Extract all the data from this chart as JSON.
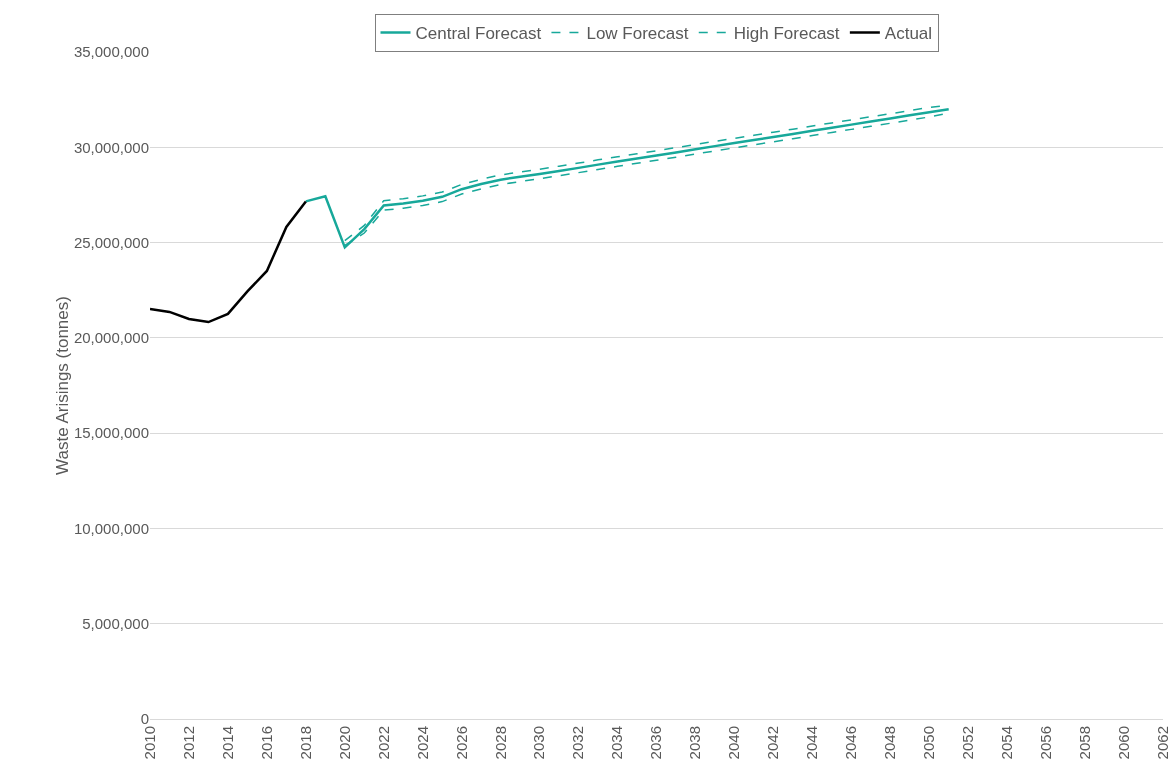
{
  "chart_data": {
    "type": "line",
    "ylabel": "Waste Arisings (tonnes)",
    "xlim": [
      2010,
      2062
    ],
    "xticks": [
      2010,
      2012,
      2014,
      2016,
      2018,
      2020,
      2022,
      2024,
      2026,
      2028,
      2030,
      2032,
      2034,
      2036,
      2038,
      2040,
      2042,
      2044,
      2046,
      2048,
      2050,
      2052,
      2054,
      2056,
      2058,
      2060,
      2062
    ],
    "ylim": [
      0,
      35000000
    ],
    "yticks": [
      {
        "value": 0,
        "label": "0"
      },
      {
        "value": 5000000,
        "label": "5,000,000"
      },
      {
        "value": 10000000,
        "label": "10,000,000"
      },
      {
        "value": 15000000,
        "label": "15,000,000"
      },
      {
        "value": 20000000,
        "label": "20,000,000"
      },
      {
        "value": 25000000,
        "label": "25,000,000"
      },
      {
        "value": 30000000,
        "label": "30,000,000"
      },
      {
        "value": 35000000,
        "label": "35,000,000"
      }
    ],
    "grid": "y",
    "legend": "top",
    "marker": "none",
    "series": [
      {
        "name": "Central Forecast",
        "color": "#17a89a",
        "line_style": "solid",
        "x": [
          2018,
          2019,
          2020,
          2021,
          2022,
          2023,
          2024,
          2025,
          2026,
          2027,
          2028,
          2029,
          2030,
          2031,
          2032,
          2033,
          2034,
          2035,
          2036,
          2037,
          2038,
          2039,
          2040,
          2041,
          2042,
          2043,
          2044,
          2045,
          2046,
          2047,
          2048,
          2049,
          2050,
          2051
        ],
        "values": [
          27160000,
          27430000,
          24750000,
          25710000,
          26950000,
          27050000,
          27200000,
          27400000,
          27800000,
          28070000,
          28300000,
          28450000,
          28600000,
          28760000,
          28920000,
          29090000,
          29250000,
          29410000,
          29570000,
          29730000,
          29900000,
          30060000,
          30220000,
          30380000,
          30540000,
          30700000,
          30870000,
          31030000,
          31190000,
          31350000,
          31510000,
          31680000,
          31840000,
          32000000
        ]
      },
      {
        "name": "Low Forecast",
        "color": "#17a89a",
        "line_style": "dashed",
        "x": [
          2020,
          2021,
          2022,
          2023,
          2024,
          2025,
          2026,
          2027,
          2028,
          2029,
          2030,
          2031,
          2032,
          2033,
          2034,
          2035,
          2036,
          2037,
          2038,
          2039,
          2040,
          2041,
          2042,
          2043,
          2044,
          2045,
          2046,
          2047,
          2048,
          2049,
          2050,
          2051
        ],
        "values": [
          24850000,
          25500000,
          26700000,
          26800000,
          26950000,
          27150000,
          27550000,
          27820000,
          28050000,
          28200000,
          28350000,
          28510000,
          28670000,
          28840000,
          29000000,
          29160000,
          29320000,
          29480000,
          29650000,
          29810000,
          29970000,
          30130000,
          30290000,
          30450000,
          30620000,
          30780000,
          30940000,
          31100000,
          31260000,
          31430000,
          31590000,
          31800000
        ]
      },
      {
        "name": "High Forecast",
        "color": "#17a89a",
        "line_style": "dashed",
        "x": [
          2020,
          2021,
          2022,
          2023,
          2024,
          2025,
          2026,
          2027,
          2028,
          2029,
          2030,
          2031,
          2032,
          2033,
          2034,
          2035,
          2036,
          2037,
          2038,
          2039,
          2040,
          2041,
          2042,
          2043,
          2044,
          2045,
          2046,
          2047,
          2048,
          2049,
          2050,
          2051
        ],
        "values": [
          25100000,
          25900000,
          27200000,
          27300000,
          27450000,
          27650000,
          28050000,
          28320000,
          28550000,
          28700000,
          28850000,
          29010000,
          29170000,
          29340000,
          29500000,
          29660000,
          29820000,
          29980000,
          30150000,
          30310000,
          30470000,
          30630000,
          30790000,
          30950000,
          31120000,
          31280000,
          31440000,
          31600000,
          31760000,
          31930000,
          32090000,
          32200000
        ]
      },
      {
        "name": "Actual",
        "color": "#000000",
        "line_style": "solid",
        "x": [
          2010,
          2011,
          2012,
          2013,
          2014,
          2015,
          2016,
          2017,
          2018
        ],
        "values": [
          21520000,
          21360000,
          20990000,
          20830000,
          21260000,
          22440000,
          23510000,
          25820000,
          27160000
        ]
      }
    ]
  }
}
